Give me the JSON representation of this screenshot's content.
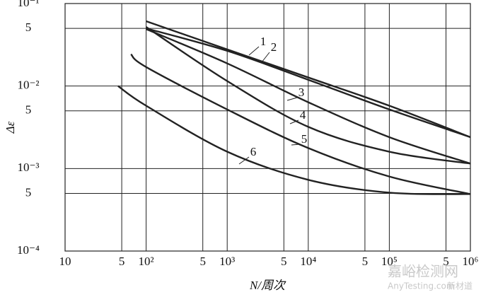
{
  "chart_data": {
    "type": "line",
    "x_label": "N/周次",
    "y_label": "Δε",
    "xlog": true,
    "ylog": true,
    "grid": true,
    "xlim": [
      10,
      1000000
    ],
    "ylim": [
      0.0001,
      0.1
    ],
    "xticks": [
      {
        "value": 10,
        "label": "10"
      },
      {
        "value": 50,
        "label": "5"
      },
      {
        "value": 100,
        "label": "10²"
      },
      {
        "value": 500,
        "label": "5"
      },
      {
        "value": 1000,
        "label": "10³"
      },
      {
        "value": 5000,
        "label": "5"
      },
      {
        "value": 10000,
        "label": "10⁴"
      },
      {
        "value": 50000,
        "label": "5"
      },
      {
        "value": 100000,
        "label": "10⁵"
      },
      {
        "value": 500000,
        "label": "5"
      },
      {
        "value": 1000000,
        "label": "10⁶"
      }
    ],
    "yticks": [
      {
        "value": 0.0001,
        "label": "10⁻⁴"
      },
      {
        "value": 0.0005,
        "label": "5"
      },
      {
        "value": 0.001,
        "label": "10⁻³"
      },
      {
        "value": 0.005,
        "label": "5"
      },
      {
        "value": 0.01,
        "label": "10⁻²"
      },
      {
        "value": 0.05,
        "label": "5"
      },
      {
        "value": 0.1,
        "label": "10⁻¹"
      }
    ],
    "series": [
      {
        "name": "1",
        "color": "#222222",
        "x": [
          100,
          1000,
          10000,
          100000,
          1000000
        ],
        "values": [
          0.061,
          0.0278,
          0.0127,
          0.00577,
          0.0024
        ]
      },
      {
        "name": "2",
        "color": "#222222",
        "x": [
          100,
          1000,
          10000,
          100000,
          1000000
        ],
        "values": [
          0.05,
          0.0267,
          0.0119,
          0.0052,
          0.0024
        ]
      },
      {
        "name": "3",
        "color": "#222222",
        "x": [
          100,
          1000,
          10000,
          100000,
          1000000
        ],
        "values": [
          0.049,
          0.0188,
          0.00636,
          0.0024,
          0.00115
        ]
      },
      {
        "name": "4",
        "color": "#222222",
        "x": [
          100,
          1000,
          10000,
          100000,
          1000000
        ],
        "values": [
          0.052,
          0.0115,
          0.0032,
          0.0016,
          0.00115
        ]
      },
      {
        "name": "5",
        "color": "#222222",
        "x": [
          65,
          100,
          1000,
          10000,
          100000,
          1000000
        ],
        "values": [
          0.0243,
          0.017,
          0.0052,
          0.00177,
          0.0008,
          0.00049
        ]
      },
      {
        "name": "6",
        "color": "#222222",
        "x": [
          45,
          100,
          1000,
          10000,
          100000,
          1000000
        ],
        "values": [
          0.01,
          0.00577,
          0.0016,
          0.00073,
          0.00051,
          0.00049
        ]
      }
    ]
  },
  "watermark": [
    "嘉峪检测网",
    "AnyTesting.com",
    "新材道"
  ]
}
